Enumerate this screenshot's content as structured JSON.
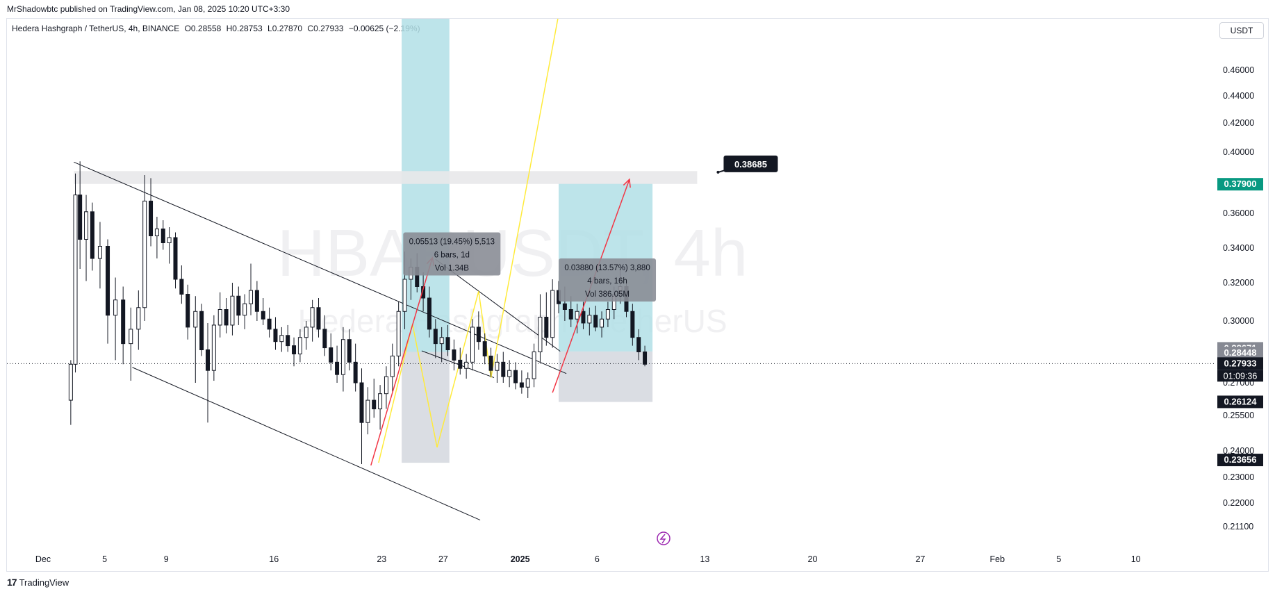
{
  "publisher": "MrShadowbtc published on TradingView.com, Jan 08, 2025 10:20 UTC+3:30",
  "symbol_header": {
    "name": "Hedera Hashgraph / TetherUS, 4h, BINANCE",
    "open": "O0.28558",
    "high": "H0.28753",
    "low": "L0.27870",
    "close": "C0.27933",
    "change": "−0.00625 (−2.19%)"
  },
  "currency": "USDT",
  "watermark": {
    "ticker": "HBARUSDT, 4h",
    "name": "Hedera Hashgraph / TetherUS"
  },
  "footer": {
    "brand": "TradingView",
    "icon": "tradingview-logo-icon"
  },
  "colors": {
    "long_target": "#b2dfe6",
    "stop_zone": "#d1d4dc",
    "arrow": "#f23645",
    "zigzag": "#ffeb3b",
    "wedge": "#131722",
    "teal_label": "#089981",
    "up_candle": "#ffffff",
    "down_candle": "#131722"
  },
  "chart_data": {
    "type": "candlestick",
    "interval": "4h",
    "ylim": [
      0.205,
      0.475
    ],
    "y_ticks": [
      "0.46000",
      "0.44000",
      "0.42000",
      "0.40000",
      "0.36000",
      "0.34000",
      "0.32000",
      "0.30000",
      "0.27000",
      "0.25500",
      "0.24000",
      "0.23000",
      "0.22000",
      "0.21100"
    ],
    "x_labels": [
      {
        "label": "Dec",
        "day": 0
      },
      {
        "label": "5",
        "day": 4
      },
      {
        "label": "9",
        "day": 8
      },
      {
        "label": "16",
        "day": 15
      },
      {
        "label": "23",
        "day": 22
      },
      {
        "label": "27",
        "day": 26
      },
      {
        "label": "2025",
        "day": 31
      },
      {
        "label": "6",
        "day": 36
      },
      {
        "label": "13",
        "day": 43
      },
      {
        "label": "20",
        "day": 50
      },
      {
        "label": "27",
        "day": 57
      },
      {
        "label": "Feb",
        "day": 62
      },
      {
        "label": "5",
        "day": 66
      },
      {
        "label": "10",
        "day": 71
      }
    ],
    "price_labels": [
      {
        "value": 0.379,
        "text": "0.37900",
        "style": "teal"
      },
      {
        "value": 0.28671,
        "text": "0.28671",
        "style": "gray"
      },
      {
        "value": 0.28448,
        "text": "0.28448",
        "style": "gray"
      },
      {
        "value": 0.27933,
        "text": "0.27933",
        "style": "black"
      },
      {
        "value": 0.26124,
        "text": "0.26124",
        "style": "black"
      },
      {
        "value": 0.23656,
        "text": "0.23656",
        "style": "black"
      }
    ],
    "countdown": "01:09:36",
    "callout": {
      "text": "0.38685",
      "day": 43,
      "value": 0.38685
    },
    "resistance_zone": {
      "day_start": 2,
      "day_end": 42.5,
      "low": 0.3792,
      "high": 0.3876
    },
    "measure_1": {
      "lines": [
        "0.05513 (19.45%) 5,513",
        "6 bars, 1d",
        "Vol 1.34B"
      ],
      "day": 23.4,
      "value": 0.349
    },
    "measure_2": {
      "lines": [
        "0.03880 (13.57%) 3,880",
        "4 bars, 16h",
        "Vol 386.05M"
      ],
      "day": 33.5,
      "value": 0.334
    },
    "position_1": {
      "day_start": 23.3,
      "day_end": 26.4,
      "entry": 0.285,
      "target": 0.475,
      "stop": 0.2355
    },
    "position_2": {
      "day_start": 33.5,
      "day_end": 39.6,
      "entry": 0.2852,
      "target": 0.3795,
      "stop": 0.2612
    },
    "wedge": {
      "upper": [
        [
          2,
          0.3935
        ],
        [
          34,
          0.2745
        ]
      ],
      "lower": [
        [
          5.8,
          0.2775
        ],
        [
          28.4,
          0.2135
        ]
      ],
      "upper2": [
        [
          25.5,
          0.3335
        ],
        [
          33.6,
          0.2853
        ]
      ],
      "lower2": [
        [
          24.6,
          0.2855
        ],
        [
          29.3,
          0.2725
        ]
      ]
    },
    "arrows": [
      {
        "from": [
          21.3,
          0.2345
        ],
        "to": [
          25.3,
          0.3345
        ]
      },
      {
        "from": [
          33.1,
          0.2655
        ],
        "to": [
          38.1,
          0.3822
        ]
      }
    ],
    "zigzag": [
      [
        21.8,
        0.2355
      ],
      [
        24.0,
        0.2985
      ],
      [
        25.6,
        0.2415
      ],
      [
        28.3,
        0.3155
      ],
      [
        29.1,
        0.2725
      ],
      [
        33.5,
        0.4775
      ]
    ],
    "candles": [
      {
        "d": 1.8,
        "o": 0.262,
        "h": 0.281,
        "l": 0.251,
        "c": 0.279
      },
      {
        "d": 2.1,
        "o": 0.279,
        "h": 0.386,
        "l": 0.275,
        "c": 0.372
      },
      {
        "d": 2.4,
        "o": 0.372,
        "h": 0.394,
        "l": 0.328,
        "c": 0.345
      },
      {
        "d": 2.8,
        "o": 0.345,
        "h": 0.372,
        "l": 0.321,
        "c": 0.361
      },
      {
        "d": 3.2,
        "o": 0.361,
        "h": 0.367,
        "l": 0.327,
        "c": 0.334
      },
      {
        "d": 3.7,
        "o": 0.334,
        "h": 0.355,
        "l": 0.317,
        "c": 0.341
      },
      {
        "d": 4.2,
        "o": 0.341,
        "h": 0.345,
        "l": 0.289,
        "c": 0.303
      },
      {
        "d": 4.7,
        "o": 0.303,
        "h": 0.323,
        "l": 0.281,
        "c": 0.311
      },
      {
        "d": 5.2,
        "o": 0.311,
        "h": 0.318,
        "l": 0.279,
        "c": 0.289
      },
      {
        "d": 5.7,
        "o": 0.289,
        "h": 0.307,
        "l": 0.271,
        "c": 0.296
      },
      {
        "d": 6.2,
        "o": 0.296,
        "h": 0.316,
        "l": 0.286,
        "c": 0.307
      },
      {
        "d": 6.6,
        "o": 0.307,
        "h": 0.385,
        "l": 0.3,
        "c": 0.368
      },
      {
        "d": 7.0,
        "o": 0.368,
        "h": 0.383,
        "l": 0.341,
        "c": 0.347
      },
      {
        "d": 7.4,
        "o": 0.347,
        "h": 0.358,
        "l": 0.334,
        "c": 0.351
      },
      {
        "d": 7.8,
        "o": 0.351,
        "h": 0.356,
        "l": 0.339,
        "c": 0.343
      },
      {
        "d": 8.2,
        "o": 0.343,
        "h": 0.352,
        "l": 0.331,
        "c": 0.346
      },
      {
        "d": 8.6,
        "o": 0.346,
        "h": 0.349,
        "l": 0.317,
        "c": 0.322
      },
      {
        "d": 9.0,
        "o": 0.322,
        "h": 0.33,
        "l": 0.309,
        "c": 0.314
      },
      {
        "d": 9.4,
        "o": 0.314,
        "h": 0.319,
        "l": 0.291,
        "c": 0.297
      },
      {
        "d": 9.9,
        "o": 0.297,
        "h": 0.313,
        "l": 0.27,
        "c": 0.305
      },
      {
        "d": 10.3,
        "o": 0.305,
        "h": 0.309,
        "l": 0.283,
        "c": 0.286
      },
      {
        "d": 10.7,
        "o": 0.286,
        "h": 0.299,
        "l": 0.252,
        "c": 0.276
      },
      {
        "d": 11.1,
        "o": 0.276,
        "h": 0.303,
        "l": 0.271,
        "c": 0.298
      },
      {
        "d": 11.5,
        "o": 0.298,
        "h": 0.315,
        "l": 0.292,
        "c": 0.306
      },
      {
        "d": 11.9,
        "o": 0.306,
        "h": 0.312,
        "l": 0.294,
        "c": 0.298
      },
      {
        "d": 12.3,
        "o": 0.298,
        "h": 0.32,
        "l": 0.293,
        "c": 0.313
      },
      {
        "d": 12.7,
        "o": 0.313,
        "h": 0.318,
        "l": 0.298,
        "c": 0.303
      },
      {
        "d": 13.1,
        "o": 0.303,
        "h": 0.314,
        "l": 0.296,
        "c": 0.309
      },
      {
        "d": 13.5,
        "o": 0.309,
        "h": 0.331,
        "l": 0.303,
        "c": 0.316
      },
      {
        "d": 13.9,
        "o": 0.316,
        "h": 0.321,
        "l": 0.3,
        "c": 0.305
      },
      {
        "d": 14.3,
        "o": 0.305,
        "h": 0.312,
        "l": 0.298,
        "c": 0.301
      },
      {
        "d": 14.7,
        "o": 0.301,
        "h": 0.307,
        "l": 0.292,
        "c": 0.296
      },
      {
        "d": 15.1,
        "o": 0.296,
        "h": 0.302,
        "l": 0.286,
        "c": 0.29
      },
      {
        "d": 15.5,
        "o": 0.29,
        "h": 0.297,
        "l": 0.285,
        "c": 0.293
      },
      {
        "d": 15.9,
        "o": 0.293,
        "h": 0.298,
        "l": 0.285,
        "c": 0.288
      },
      {
        "d": 16.3,
        "o": 0.288,
        "h": 0.292,
        "l": 0.278,
        "c": 0.284
      },
      {
        "d": 16.7,
        "o": 0.284,
        "h": 0.296,
        "l": 0.28,
        "c": 0.292
      },
      {
        "d": 17.1,
        "o": 0.292,
        "h": 0.3,
        "l": 0.286,
        "c": 0.297
      },
      {
        "d": 17.5,
        "o": 0.297,
        "h": 0.311,
        "l": 0.29,
        "c": 0.307
      },
      {
        "d": 17.9,
        "o": 0.307,
        "h": 0.312,
        "l": 0.292,
        "c": 0.296
      },
      {
        "d": 18.3,
        "o": 0.296,
        "h": 0.303,
        "l": 0.283,
        "c": 0.287
      },
      {
        "d": 18.7,
        "o": 0.287,
        "h": 0.294,
        "l": 0.276,
        "c": 0.28
      },
      {
        "d": 19.1,
        "o": 0.28,
        "h": 0.288,
        "l": 0.27,
        "c": 0.274
      },
      {
        "d": 19.5,
        "o": 0.274,
        "h": 0.297,
        "l": 0.266,
        "c": 0.291
      },
      {
        "d": 19.9,
        "o": 0.291,
        "h": 0.296,
        "l": 0.276,
        "c": 0.28
      },
      {
        "d": 20.3,
        "o": 0.28,
        "h": 0.289,
        "l": 0.266,
        "c": 0.27
      },
      {
        "d": 20.7,
        "o": 0.27,
        "h": 0.277,
        "l": 0.235,
        "c": 0.252
      },
      {
        "d": 21.1,
        "o": 0.252,
        "h": 0.268,
        "l": 0.247,
        "c": 0.262
      },
      {
        "d": 21.5,
        "o": 0.262,
        "h": 0.272,
        "l": 0.254,
        "c": 0.258
      },
      {
        "d": 21.9,
        "o": 0.258,
        "h": 0.269,
        "l": 0.249,
        "c": 0.265
      },
      {
        "d": 22.3,
        "o": 0.265,
        "h": 0.278,
        "l": 0.258,
        "c": 0.273
      },
      {
        "d": 22.7,
        "o": 0.273,
        "h": 0.289,
        "l": 0.266,
        "c": 0.283
      },
      {
        "d": 23.1,
        "o": 0.283,
        "h": 0.31,
        "l": 0.278,
        "c": 0.305
      },
      {
        "d": 23.5,
        "o": 0.305,
        "h": 0.338,
        "l": 0.296,
        "c": 0.322
      },
      {
        "d": 23.9,
        "o": 0.322,
        "h": 0.334,
        "l": 0.311,
        "c": 0.329
      },
      {
        "d": 24.3,
        "o": 0.329,
        "h": 0.337,
        "l": 0.315,
        "c": 0.318
      },
      {
        "d": 24.7,
        "o": 0.318,
        "h": 0.326,
        "l": 0.305,
        "c": 0.312
      },
      {
        "d": 25.1,
        "o": 0.312,
        "h": 0.318,
        "l": 0.292,
        "c": 0.296
      },
      {
        "d": 25.5,
        "o": 0.296,
        "h": 0.301,
        "l": 0.282,
        "c": 0.289
      },
      {
        "d": 25.9,
        "o": 0.289,
        "h": 0.297,
        "l": 0.28,
        "c": 0.292
      },
      {
        "d": 26.3,
        "o": 0.292,
        "h": 0.298,
        "l": 0.283,
        "c": 0.286
      },
      {
        "d": 26.7,
        "o": 0.286,
        "h": 0.291,
        "l": 0.276,
        "c": 0.281
      },
      {
        "d": 27.1,
        "o": 0.281,
        "h": 0.287,
        "l": 0.274,
        "c": 0.277
      },
      {
        "d": 27.5,
        "o": 0.277,
        "h": 0.284,
        "l": 0.272,
        "c": 0.28
      },
      {
        "d": 27.9,
        "o": 0.28,
        "h": 0.301,
        "l": 0.276,
        "c": 0.297
      },
      {
        "d": 28.3,
        "o": 0.297,
        "h": 0.305,
        "l": 0.286,
        "c": 0.29
      },
      {
        "d": 28.7,
        "o": 0.29,
        "h": 0.294,
        "l": 0.279,
        "c": 0.283
      },
      {
        "d": 29.1,
        "o": 0.283,
        "h": 0.287,
        "l": 0.273,
        "c": 0.276
      },
      {
        "d": 29.5,
        "o": 0.276,
        "h": 0.284,
        "l": 0.27,
        "c": 0.28
      },
      {
        "d": 29.9,
        "o": 0.28,
        "h": 0.285,
        "l": 0.27,
        "c": 0.273
      },
      {
        "d": 30.3,
        "o": 0.273,
        "h": 0.281,
        "l": 0.268,
        "c": 0.276
      },
      {
        "d": 30.7,
        "o": 0.276,
        "h": 0.28,
        "l": 0.267,
        "c": 0.27
      },
      {
        "d": 31.1,
        "o": 0.27,
        "h": 0.276,
        "l": 0.265,
        "c": 0.268
      },
      {
        "d": 31.5,
        "o": 0.268,
        "h": 0.275,
        "l": 0.263,
        "c": 0.272
      },
      {
        "d": 31.9,
        "o": 0.272,
        "h": 0.289,
        "l": 0.268,
        "c": 0.285
      },
      {
        "d": 32.3,
        "o": 0.285,
        "h": 0.314,
        "l": 0.28,
        "c": 0.302
      },
      {
        "d": 32.7,
        "o": 0.302,
        "h": 0.315,
        "l": 0.288,
        "c": 0.292
      },
      {
        "d": 33.1,
        "o": 0.292,
        "h": 0.322,
        "l": 0.287,
        "c": 0.316
      },
      {
        "d": 33.5,
        "o": 0.316,
        "h": 0.321,
        "l": 0.304,
        "c": 0.309
      },
      {
        "d": 33.9,
        "o": 0.309,
        "h": 0.318,
        "l": 0.3,
        "c": 0.306
      },
      {
        "d": 34.3,
        "o": 0.306,
        "h": 0.313,
        "l": 0.297,
        "c": 0.301
      },
      {
        "d": 34.7,
        "o": 0.301,
        "h": 0.309,
        "l": 0.294,
        "c": 0.305
      },
      {
        "d": 35.1,
        "o": 0.305,
        "h": 0.31,
        "l": 0.296,
        "c": 0.299
      },
      {
        "d": 35.5,
        "o": 0.299,
        "h": 0.307,
        "l": 0.293,
        "c": 0.303
      },
      {
        "d": 35.9,
        "o": 0.303,
        "h": 0.308,
        "l": 0.295,
        "c": 0.297
      },
      {
        "d": 36.3,
        "o": 0.297,
        "h": 0.305,
        "l": 0.292,
        "c": 0.301
      },
      {
        "d": 36.7,
        "o": 0.301,
        "h": 0.31,
        "l": 0.297,
        "c": 0.306
      },
      {
        "d": 37.1,
        "o": 0.306,
        "h": 0.318,
        "l": 0.301,
        "c": 0.314
      },
      {
        "d": 37.5,
        "o": 0.314,
        "h": 0.328,
        "l": 0.309,
        "c": 0.318
      },
      {
        "d": 37.9,
        "o": 0.318,
        "h": 0.321,
        "l": 0.302,
        "c": 0.305
      },
      {
        "d": 38.3,
        "o": 0.305,
        "h": 0.309,
        "l": 0.288,
        "c": 0.292
      },
      {
        "d": 38.7,
        "o": 0.292,
        "h": 0.296,
        "l": 0.281,
        "c": 0.285
      },
      {
        "d": 39.1,
        "o": 0.285,
        "h": 0.288,
        "l": 0.278,
        "c": 0.279
      }
    ]
  }
}
